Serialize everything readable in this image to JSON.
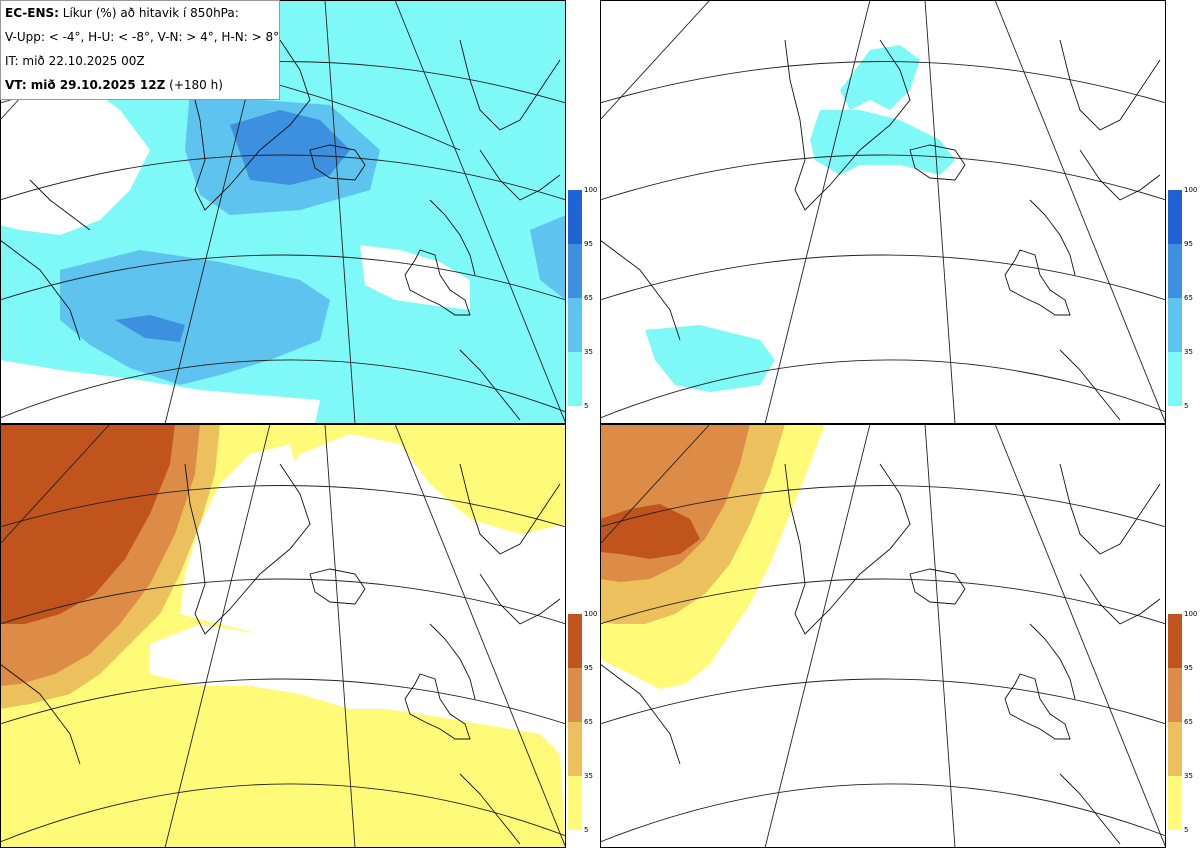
{
  "info": {
    "line1_bold": "EC-ENS:",
    "line1_rest": "Líkur (%) að hitavik í 850hPa:",
    "line2": "V-Upp: < -4°, H-U: < -8°, V-N: > 4°, H-N: > 8°",
    "line3": "IT: mið 22.10.2025 00Z",
    "line4_bold": "VT: mið 29.10.2025 12Z",
    "line4_rest": "(+180 h)"
  },
  "panels": [
    {
      "id": "V-Upp",
      "description": "cold anomaly < -4°",
      "scheme": "blue"
    },
    {
      "id": "H-U",
      "description": "cold anomaly < -8°",
      "scheme": "blue"
    },
    {
      "id": "V-N",
      "description": "warm anomaly > 4°",
      "scheme": "orange"
    },
    {
      "id": "H-N",
      "description": "warm anomaly > 8°",
      "scheme": "orange"
    }
  ],
  "legend": {
    "ticks": [
      "100",
      "95",
      "65",
      "35",
      "5"
    ],
    "blue_colors": [
      "#1f63d6",
      "#3d8fe0",
      "#5ec3ee",
      "#7ff8f8"
    ],
    "orange_colors": [
      "#c0541c",
      "#dc8c46",
      "#ecc05c",
      "#fffb78"
    ]
  }
}
